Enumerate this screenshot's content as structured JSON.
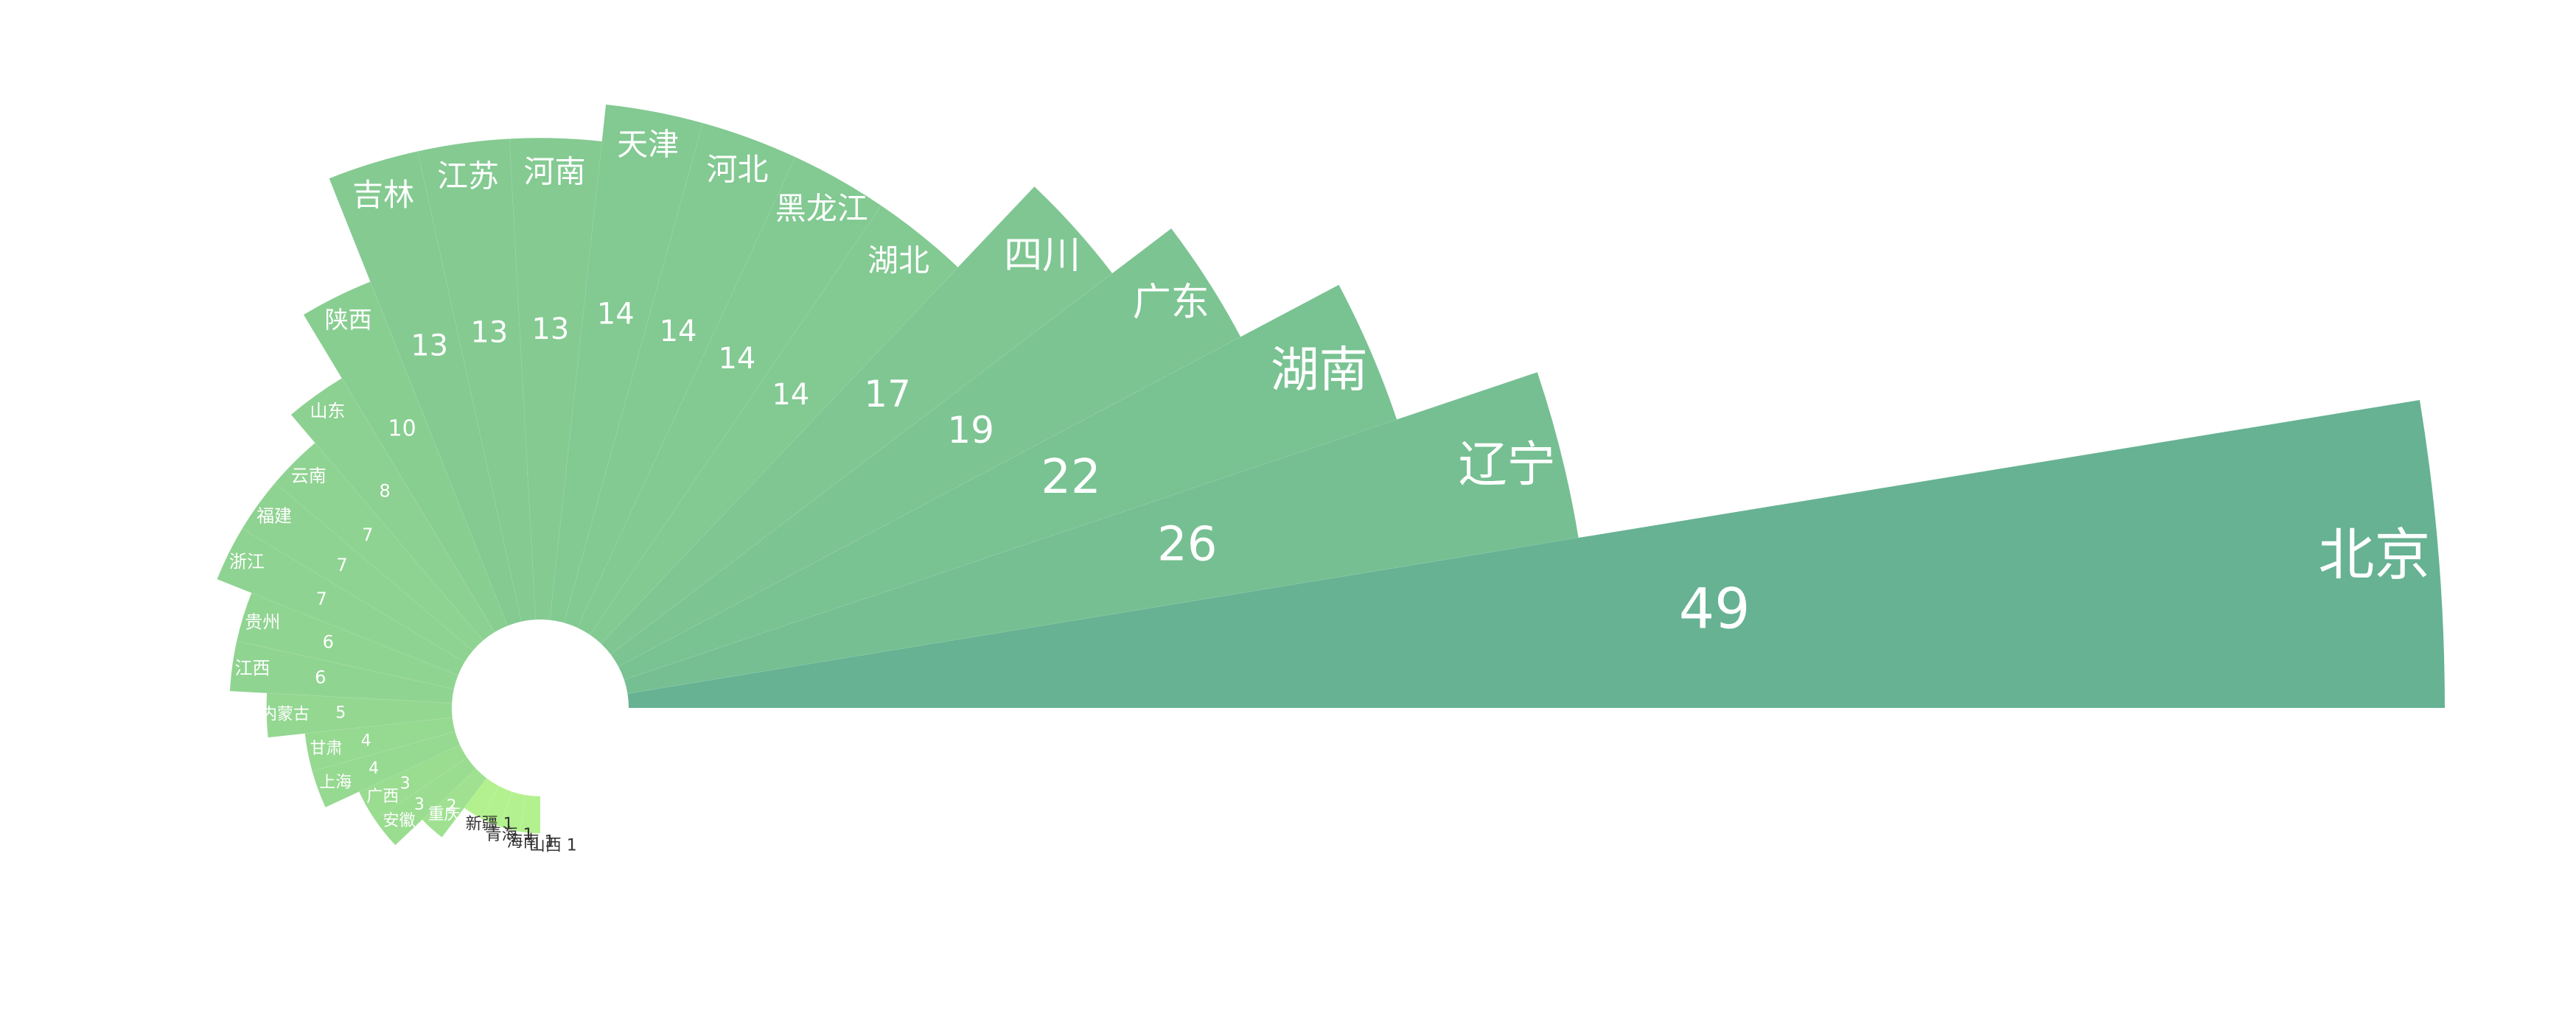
{
  "chart_data": {
    "type": "nightingale-rose",
    "series": [
      {
        "data": [
          {
            "name": "北京",
            "value": 49
          },
          {
            "name": "辽宁",
            "value": 26
          },
          {
            "name": "湖南",
            "value": 22
          },
          {
            "name": "广东",
            "value": 19
          },
          {
            "name": "四川",
            "value": 17
          },
          {
            "name": "湖北",
            "value": 14
          },
          {
            "name": "黑龙江",
            "value": 14
          },
          {
            "name": "河北",
            "value": 14
          },
          {
            "name": "天津",
            "value": 14
          },
          {
            "name": "河南",
            "value": 13
          },
          {
            "name": "江苏",
            "value": 13
          },
          {
            "name": "吉林",
            "value": 13
          },
          {
            "name": "陕西",
            "value": 10
          },
          {
            "name": "山东",
            "value": 8
          },
          {
            "name": "云南",
            "value": 7
          },
          {
            "name": "福建",
            "value": 7
          },
          {
            "name": "浙江",
            "value": 7
          },
          {
            "name": "贵州",
            "value": 6
          },
          {
            "name": "江西",
            "value": 6
          },
          {
            "name": "内蒙古",
            "value": 5
          },
          {
            "name": "甘肃",
            "value": 4
          },
          {
            "name": "上海",
            "value": 4
          },
          {
            "name": "广西",
            "value": 3
          },
          {
            "name": "安徽",
            "value": 3
          },
          {
            "name": "重庆",
            "value": 2
          },
          {
            "name": "新疆",
            "value": 1
          },
          {
            "name": "青海",
            "value": 1
          },
          {
            "name": "海南",
            "value": 1
          },
          {
            "name": "山西",
            "value": 1
          }
        ]
      }
    ],
    "colors": {
      "high": "#66b293",
      "low": "#b3f18f",
      "text_light": "#ffffff",
      "text_dark": "#333333"
    }
  }
}
